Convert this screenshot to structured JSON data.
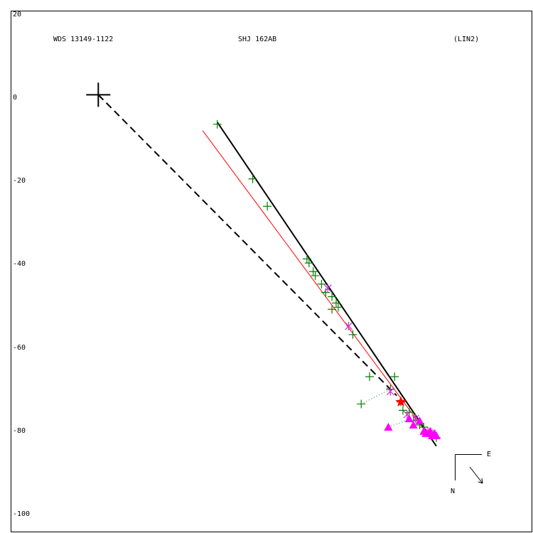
{
  "header": {
    "designation": "WDS 13149-1122",
    "pair": "SHJ 162AB",
    "fit_note": "(LIN2)"
  },
  "compass": {
    "east_label": "E",
    "north_label": "N"
  },
  "chart_data": {
    "type": "scatter",
    "xlim": [
      -21,
      104
    ],
    "ylim": [
      -104,
      20
    ],
    "y_ticks": [
      "20",
      "0",
      "-20",
      "-40",
      "-60",
      "-80",
      "-100"
    ],
    "y_tick_values": [
      20,
      0,
      -20,
      -40,
      -60,
      -80,
      -100
    ],
    "primary_star": [
      0,
      0
    ],
    "colors": {
      "frame": "#000000",
      "plus_obs": "#008000",
      "cross_obs": "#cc33cc",
      "triangle_obs": "#ff00ff",
      "red_line": "#ff0000",
      "star_marker": "#ff0000"
    },
    "series": [
      {
        "values": [
          [
            28.5,
            -7
          ],
          [
            37,
            -20
          ],
          [
            40.5,
            -26.5
          ],
          [
            50,
            -39
          ],
          [
            50.5,
            -40
          ],
          [
            51.5,
            -42
          ],
          [
            52,
            -43
          ],
          [
            53.5,
            -45
          ],
          [
            54.5,
            -47
          ],
          [
            56,
            -48
          ],
          [
            57,
            -49.5
          ],
          [
            57.5,
            -50.5
          ],
          [
            56,
            -51
          ],
          [
            61,
            -57
          ],
          [
            65,
            -67
          ],
          [
            63,
            -73.5
          ],
          [
            71,
            -67
          ],
          [
            70,
            -70
          ],
          [
            72.5,
            -73
          ],
          [
            73,
            -75
          ],
          [
            74.5,
            -75.5
          ],
          [
            75.5,
            -77.5
          ],
          [
            77,
            -78.5
          ],
          [
            78,
            -79
          ],
          [
            80,
            -81
          ],
          [
            81,
            -81.5
          ]
        ]
      },
      {
        "values": [
          [
            55,
            -46
          ],
          [
            60,
            -55
          ],
          [
            70,
            -70.5
          ],
          [
            74,
            -76
          ],
          [
            76,
            -77
          ],
          [
            79,
            -80
          ],
          [
            80,
            -80.5
          ]
        ]
      },
      {
        "values": [
          [
            69.5,
            -79
          ],
          [
            74.5,
            -77
          ],
          [
            75.5,
            -78.5
          ],
          [
            77,
            -77.5
          ],
          [
            78,
            -80
          ],
          [
            78.5,
            -80.5
          ],
          [
            79.5,
            -80
          ],
          [
            80,
            -81
          ],
          [
            80.5,
            -80.5
          ],
          [
            81,
            -81
          ]
        ]
      }
    ],
    "orbit_line": [
      [
        28.5,
        -6.5
      ],
      [
        81,
        -83.5
      ]
    ],
    "red_line": [
      [
        25,
        -8.5
      ],
      [
        79.5,
        -81.5
      ]
    ],
    "dashed_line": [
      [
        0,
        0
      ],
      [
        71.5,
        -71.5
      ]
    ],
    "dotted_residuals": [
      [
        [
          63,
          -73.5
        ],
        [
          70,
          -70
        ]
      ],
      [
        [
          69.5,
          -79
        ],
        [
          75,
          -77
        ]
      ]
    ],
    "predicted_position": [
      72.5,
      -73
    ]
  }
}
